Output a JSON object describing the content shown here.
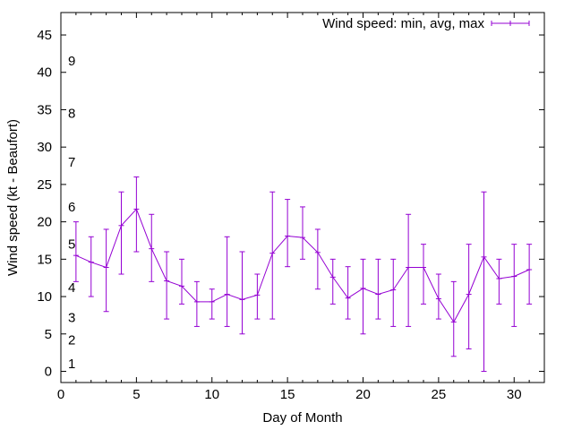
{
  "chart_data": {
    "type": "line",
    "xlabel": "Day of Month",
    "ylabel": "Wind speed (kt - Beaufort)",
    "xlim": [
      0,
      32
    ],
    "ylim": [
      -1.5,
      48
    ],
    "xticks": [
      "0",
      "5",
      "10",
      "15",
      "20",
      "25",
      "30"
    ],
    "yticks": [
      "0",
      "5",
      "10",
      "15",
      "20",
      "25",
      "30",
      "35",
      "40",
      "45"
    ],
    "beaufort_labels": [
      {
        "label": "1",
        "y": 1
      },
      {
        "label": "2",
        "y": 4.2
      },
      {
        "label": "3",
        "y": 7.2
      },
      {
        "label": "4",
        "y": 11.2
      },
      {
        "label": "5",
        "y": 17
      },
      {
        "label": "6",
        "y": 22
      },
      {
        "label": "7",
        "y": 28
      },
      {
        "label": "8",
        "y": 34.5
      },
      {
        "label": "9",
        "y": 41.5
      }
    ],
    "series": [
      {
        "name": "Wind speed: min, avg, max",
        "color": "#9400d3",
        "x": [
          1,
          2,
          3,
          4,
          5,
          6,
          7,
          8,
          9,
          10,
          11,
          12,
          13,
          14,
          15,
          16,
          17,
          18,
          19,
          20,
          21,
          22,
          23,
          24,
          25,
          26,
          27,
          28,
          29,
          30,
          31
        ],
        "min": [
          12,
          10,
          8,
          13,
          16,
          12,
          7,
          9,
          6,
          7,
          6,
          5,
          7,
          7,
          14,
          15,
          11,
          9,
          7,
          5,
          7,
          6,
          6,
          9,
          7,
          2,
          3,
          0,
          9,
          6,
          9
        ],
        "avg": [
          15.5,
          14.6,
          13.9,
          19.5,
          21.7,
          16.4,
          12.1,
          11.4,
          9.3,
          9.3,
          10.3,
          9.6,
          10.2,
          15.8,
          18.1,
          17.9,
          15.9,
          12.6,
          9.8,
          11.1,
          10.3,
          10.9,
          13.9,
          13.9,
          9.7,
          6.6,
          10.3,
          15.3,
          12.4,
          12.7,
          13.6
        ],
        "max": [
          20,
          18,
          19,
          24,
          26,
          21,
          16,
          15,
          12,
          11,
          18,
          16,
          13,
          24,
          23,
          22,
          19,
          15,
          14,
          15,
          15,
          15,
          21,
          17,
          13,
          12,
          17,
          24,
          15,
          17,
          17
        ]
      }
    ]
  }
}
